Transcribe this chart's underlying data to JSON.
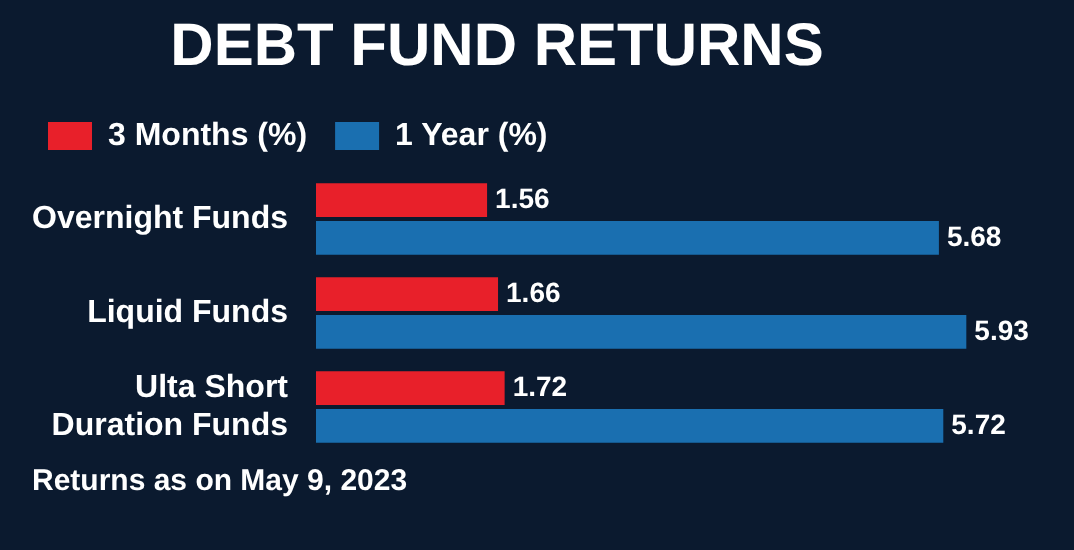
{
  "chart_data": {
    "type": "bar",
    "orientation": "horizontal",
    "title": "DEBT FUND RETURNS",
    "categories": [
      "Overnight Funds",
      "Liquid Funds",
      "Ulta Short Duration Funds"
    ],
    "series": [
      {
        "name": "3 Months (%)",
        "color": "#e8202a",
        "values": [
          1.56,
          1.66,
          1.72
        ]
      },
      {
        "name": "1 Year (%)",
        "color": "#1a6fb0",
        "values": [
          5.68,
          5.93,
          5.72
        ]
      }
    ],
    "tick_labels": "y",
    "grid": false,
    "legend": "top left",
    "data_labels": true,
    "annotations": [
      "Returns as on May 9, 2023"
    ]
  }
}
